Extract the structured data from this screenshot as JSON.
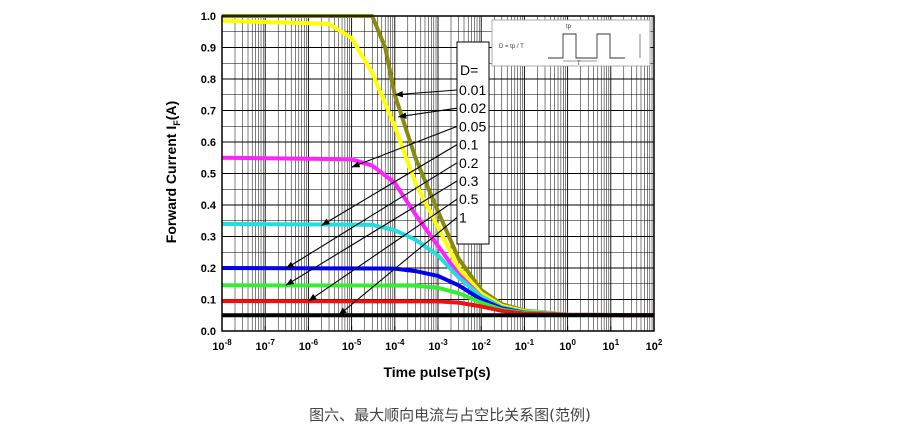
{
  "caption": "图六、最大顺向电流与占空比关系图(范例)",
  "chart_data": {
    "type": "line",
    "xlabel": "Time pulseTp(s)",
    "ylabel": "Forward Current I",
    "ylabel_sub": "F",
    "ylabel_suffix": "(A)",
    "x_scale": "log",
    "xlim": [
      1e-08,
      100
    ],
    "ylim": [
      0,
      1.0
    ],
    "x_tick_exponents": [
      -8,
      -7,
      -6,
      -5,
      -4,
      -3,
      -2,
      -1,
      0,
      1,
      2
    ],
    "y_ticks": [
      "0.0",
      "0.1",
      "0.2",
      "0.3",
      "0.4",
      "0.5",
      "0.6",
      "0.7",
      "0.8",
      "0.9",
      "1.0"
    ],
    "grid": true,
    "legend_title": "D=",
    "legend_labels": [
      "0.01",
      "0.02",
      "0.05",
      "0.1",
      "0.2",
      "0.3",
      "0.5",
      "1"
    ],
    "inset": {
      "formula": "D = tp / T",
      "tp_label": "tp",
      "T_label": "T"
    },
    "series": [
      {
        "d": 0.01,
        "color": "#8a8a10",
        "points": [
          [
            1e-08,
            1.0
          ],
          [
            3e-05,
            1.0
          ],
          [
            6e-05,
            0.9
          ],
          [
            0.0001,
            0.75
          ],
          [
            0.0003,
            0.55
          ],
          [
            0.001,
            0.38
          ],
          [
            0.003,
            0.23
          ],
          [
            0.01,
            0.13
          ],
          [
            0.03,
            0.085
          ],
          [
            0.1,
            0.065
          ],
          [
            1,
            0.052
          ],
          [
            100,
            0.05
          ]
        ]
      },
      {
        "d": 0.02,
        "color": "#ffff00",
        "points": [
          [
            1e-08,
            0.985
          ],
          [
            3e-06,
            0.975
          ],
          [
            1e-05,
            0.93
          ],
          [
            3e-05,
            0.82
          ],
          [
            0.0001,
            0.65
          ],
          [
            0.0003,
            0.47
          ],
          [
            0.001,
            0.33
          ],
          [
            0.003,
            0.2
          ],
          [
            0.01,
            0.12
          ],
          [
            0.03,
            0.08
          ],
          [
            0.1,
            0.063
          ],
          [
            1,
            0.052
          ],
          [
            100,
            0.05
          ]
        ]
      },
      {
        "d": 0.05,
        "color": "#ff22ff",
        "points": [
          [
            1e-08,
            0.55
          ],
          [
            1e-05,
            0.545
          ],
          [
            3e-05,
            0.525
          ],
          [
            0.0001,
            0.47
          ],
          [
            0.0003,
            0.37
          ],
          [
            0.001,
            0.27
          ],
          [
            0.003,
            0.18
          ],
          [
            0.01,
            0.11
          ],
          [
            0.03,
            0.075
          ],
          [
            0.1,
            0.06
          ],
          [
            1,
            0.052
          ],
          [
            100,
            0.05
          ]
        ]
      },
      {
        "d": 0.1,
        "color": "#22dddd",
        "points": [
          [
            1e-08,
            0.34
          ],
          [
            3e-05,
            0.337
          ],
          [
            0.0001,
            0.32
          ],
          [
            0.0003,
            0.29
          ],
          [
            0.001,
            0.24
          ],
          [
            0.003,
            0.17
          ],
          [
            0.01,
            0.11
          ],
          [
            0.03,
            0.075
          ],
          [
            0.1,
            0.06
          ],
          [
            1,
            0.052
          ],
          [
            100,
            0.05
          ]
        ]
      },
      {
        "d": 0.2,
        "color": "#0000ee",
        "points": [
          [
            1e-08,
            0.2
          ],
          [
            0.0001,
            0.198
          ],
          [
            0.0003,
            0.19
          ],
          [
            0.001,
            0.175
          ],
          [
            0.003,
            0.145
          ],
          [
            0.01,
            0.1
          ],
          [
            0.03,
            0.072
          ],
          [
            0.1,
            0.058
          ],
          [
            1,
            0.051
          ],
          [
            100,
            0.05
          ]
        ]
      },
      {
        "d": 0.3,
        "color": "#33ee33",
        "points": [
          [
            1e-08,
            0.145
          ],
          [
            0.0003,
            0.144
          ],
          [
            0.001,
            0.137
          ],
          [
            0.003,
            0.12
          ],
          [
            0.01,
            0.09
          ],
          [
            0.03,
            0.068
          ],
          [
            0.1,
            0.057
          ],
          [
            1,
            0.051
          ],
          [
            100,
            0.05
          ]
        ]
      },
      {
        "d": 0.5,
        "color": "#ee1111",
        "points": [
          [
            1e-08,
            0.095
          ],
          [
            0.001,
            0.094
          ],
          [
            0.003,
            0.09
          ],
          [
            0.01,
            0.078
          ],
          [
            0.03,
            0.064
          ],
          [
            0.1,
            0.055
          ],
          [
            1,
            0.051
          ],
          [
            100,
            0.05
          ]
        ]
      },
      {
        "d": 1,
        "color": "#000000",
        "points": [
          [
            1e-08,
            0.05
          ],
          [
            100,
            0.05
          ]
        ]
      }
    ],
    "legend_arrow_targets": [
      [
        0.0001,
        0.75
      ],
      [
        0.00012,
        0.68
      ],
      [
        1e-05,
        0.52
      ],
      [
        2e-06,
        0.335
      ],
      [
        3e-07,
        0.198
      ],
      [
        3e-07,
        0.145
      ],
      [
        1e-06,
        0.095
      ],
      [
        5e-06,
        0.05
      ]
    ]
  }
}
